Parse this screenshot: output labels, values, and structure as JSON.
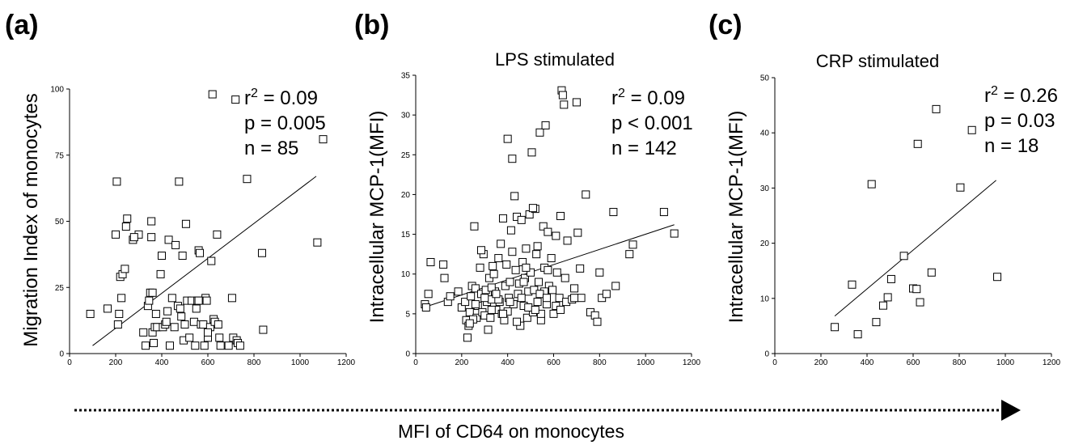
{
  "panels": {
    "a": {
      "letter": "(a)",
      "title": "",
      "ylabel": "Migration Index of monocytes",
      "stats": {
        "r2_prefix": "r",
        "r2_sup": "2",
        "r2_value": " = 0.09",
        "p": "p = 0.005",
        "n": "n = 85"
      }
    },
    "b": {
      "letter": "(b)",
      "title": "LPS stimulated",
      "ylabel": "Intracellular MCP-1(MFI)",
      "stats": {
        "r2_prefix": "r",
        "r2_sup": "2",
        "r2_value": " = 0.09",
        "p": "p < 0.001",
        "n": "n = 142"
      }
    },
    "c": {
      "letter": "(c)",
      "title": "CRP stimulated",
      "ylabel": "Intracellular MCP-1(MFI)",
      "stats": {
        "r2_prefix": "r",
        "r2_sup": "2",
        "r2_value": " = 0.26",
        "p": "p = 0.03",
        "n": "n = 18"
      }
    }
  },
  "shared_xlabel": "MFI of CD64 on monocytes",
  "chart_data": [
    {
      "type": "scatter",
      "panel": "a",
      "title": "",
      "xlabel": "",
      "ylabel": "Migration Index of monocytes",
      "xlim": [
        0,
        1200
      ],
      "ylim": [
        0,
        100
      ],
      "xticks": [
        0,
        200,
        400,
        600,
        800,
        1000,
        1200
      ],
      "yticks": [
        0,
        25,
        50,
        75,
        100
      ],
      "points": [
        [
          90,
          15
        ],
        [
          165,
          17
        ],
        [
          200,
          45
        ],
        [
          205,
          65
        ],
        [
          210,
          11
        ],
        [
          215,
          15
        ],
        [
          220,
          29
        ],
        [
          225,
          21
        ],
        [
          230,
          30
        ],
        [
          240,
          32
        ],
        [
          245,
          48
        ],
        [
          250,
          51
        ],
        [
          275,
          43
        ],
        [
          300,
          45
        ],
        [
          320,
          8
        ],
        [
          330,
          3
        ],
        [
          340,
          18
        ],
        [
          345,
          20
        ],
        [
          350,
          23
        ],
        [
          355,
          44
        ],
        [
          355,
          50
        ],
        [
          360,
          23
        ],
        [
          360,
          8
        ],
        [
          365,
          4
        ],
        [
          370,
          10
        ],
        [
          375,
          15
        ],
        [
          380,
          10
        ],
        [
          395,
          30
        ],
        [
          400,
          37
        ],
        [
          405,
          10
        ],
        [
          415,
          11
        ],
        [
          420,
          12
        ],
        [
          425,
          16
        ],
        [
          430,
          43
        ],
        [
          435,
          3
        ],
        [
          445,
          21
        ],
        [
          455,
          10
        ],
        [
          460,
          41
        ],
        [
          470,
          18
        ],
        [
          475,
          65
        ],
        [
          480,
          17
        ],
        [
          485,
          14
        ],
        [
          490,
          37
        ],
        [
          495,
          5
        ],
        [
          500,
          11
        ],
        [
          505,
          49
        ],
        [
          510,
          20
        ],
        [
          520,
          6
        ],
        [
          530,
          20
        ],
        [
          540,
          12
        ],
        [
          545,
          3
        ],
        [
          550,
          17
        ],
        [
          555,
          20
        ],
        [
          560,
          39
        ],
        [
          565,
          38
        ],
        [
          570,
          11
        ],
        [
          580,
          11
        ],
        [
          585,
          3
        ],
        [
          590,
          21
        ],
        [
          595,
          20
        ],
        [
          600,
          6
        ],
        [
          610,
          10
        ],
        [
          615,
          35
        ],
        [
          620,
          98
        ],
        [
          625,
          13
        ],
        [
          630,
          12
        ],
        [
          640,
          45
        ],
        [
          645,
          11
        ],
        [
          650,
          6
        ],
        [
          655,
          3
        ],
        [
          690,
          3
        ],
        [
          705,
          21
        ],
        [
          710,
          6
        ],
        [
          720,
          96
        ],
        [
          725,
          5
        ],
        [
          730,
          4
        ],
        [
          740,
          3
        ],
        [
          770,
          66
        ],
        [
          835,
          38
        ],
        [
          840,
          9
        ],
        [
          1075,
          42
        ],
        [
          1100,
          81
        ],
        [
          280,
          44
        ],
        [
          560,
          20
        ],
        [
          600,
          8
        ]
      ],
      "trendline": [
        [
          100,
          3
        ],
        [
          1070,
          67
        ]
      ],
      "stats": [
        "r2 = 0.09",
        "p = 0.005",
        "n = 85"
      ]
    },
    {
      "type": "scatter",
      "panel": "b",
      "title": "LPS stimulated",
      "xlabel": "",
      "ylabel": "Intracellular MCP-1(MFI)",
      "xlim": [
        0,
        1200
      ],
      "ylim": [
        0,
        35
      ],
      "xticks": [
        0,
        200,
        400,
        600,
        800,
        1000,
        1200
      ],
      "yticks": [
        0,
        5,
        10,
        15,
        20,
        25,
        30,
        35
      ],
      "points": [
        [
          40,
          6.2
        ],
        [
          45,
          5.8
        ],
        [
          55,
          7.5
        ],
        [
          65,
          11.5
        ],
        [
          120,
          11.2
        ],
        [
          125,
          9.5
        ],
        [
          140,
          6.5
        ],
        [
          150,
          7.2
        ],
        [
          185,
          7.8
        ],
        [
          200,
          5.8
        ],
        [
          215,
          6.5
        ],
        [
          220,
          4.2
        ],
        [
          225,
          2.0
        ],
        [
          230,
          3.5
        ],
        [
          235,
          5.2
        ],
        [
          240,
          7.2
        ],
        [
          245,
          8.5
        ],
        [
          255,
          16.0
        ],
        [
          260,
          8.2
        ],
        [
          265,
          4.5
        ],
        [
          270,
          6.0
        ],
        [
          280,
          10.8
        ],
        [
          285,
          7.5
        ],
        [
          290,
          5.2
        ],
        [
          295,
          12.5
        ],
        [
          300,
          4.8
        ],
        [
          305,
          8.0
        ],
        [
          310,
          6.5
        ],
        [
          315,
          3.0
        ],
        [
          320,
          9.5
        ],
        [
          325,
          4.5
        ],
        [
          330,
          6.8
        ],
        [
          335,
          11.0
        ],
        [
          340,
          10.0
        ],
        [
          345,
          7.8
        ],
        [
          350,
          5.5
        ],
        [
          360,
          12.0
        ],
        [
          365,
          6.5
        ],
        [
          370,
          13.8
        ],
        [
          375,
          5.0
        ],
        [
          380,
          17.0
        ],
        [
          385,
          4.2
        ],
        [
          390,
          8.5
        ],
        [
          395,
          11.2
        ],
        [
          400,
          27.0
        ],
        [
          405,
          7.0
        ],
        [
          410,
          9.0
        ],
        [
          415,
          15.5
        ],
        [
          420,
          24.5
        ],
        [
          425,
          6.2
        ],
        [
          430,
          19.8
        ],
        [
          435,
          10.5
        ],
        [
          440,
          17.2
        ],
        [
          445,
          7.5
        ],
        [
          450,
          8.8
        ],
        [
          455,
          3.5
        ],
        [
          460,
          16.8
        ],
        [
          465,
          11.5
        ],
        [
          470,
          6.0
        ],
        [
          475,
          9.5
        ],
        [
          480,
          13.2
        ],
        [
          485,
          4.5
        ],
        [
          490,
          7.8
        ],
        [
          495,
          17.5
        ],
        [
          500,
          10.2
        ],
        [
          505,
          25.3
        ],
        [
          510,
          5.2
        ],
        [
          515,
          8.0
        ],
        [
          520,
          18.2
        ],
        [
          525,
          12.5
        ],
        [
          530,
          6.5
        ],
        [
          535,
          9.0
        ],
        [
          540,
          27.8
        ],
        [
          545,
          4.2
        ],
        [
          550,
          7.5
        ],
        [
          555,
          16.0
        ],
        [
          560,
          10.8
        ],
        [
          565,
          28.7
        ],
        [
          570,
          6.2
        ],
        [
          575,
          15.3
        ],
        [
          580,
          8.5
        ],
        [
          590,
          12.0
        ],
        [
          600,
          5.0
        ],
        [
          610,
          14.8
        ],
        [
          615,
          10.2
        ],
        [
          625,
          7.0
        ],
        [
          630,
          17.3
        ],
        [
          635,
          33.1
        ],
        [
          640,
          32.5
        ],
        [
          645,
          31.3
        ],
        [
          650,
          9.5
        ],
        [
          655,
          6.5
        ],
        [
          660,
          14.2
        ],
        [
          680,
          6.8
        ],
        [
          690,
          8.2
        ],
        [
          700,
          31.6
        ],
        [
          705,
          15.2
        ],
        [
          715,
          10.7
        ],
        [
          720,
          7.0
        ],
        [
          740,
          20.0
        ],
        [
          760,
          5.2
        ],
        [
          780,
          4.8
        ],
        [
          790,
          4.0
        ],
        [
          800,
          10.2
        ],
        [
          810,
          7.0
        ],
        [
          830,
          7.5
        ],
        [
          860,
          17.8
        ],
        [
          870,
          8.5
        ],
        [
          930,
          12.5
        ],
        [
          945,
          13.7
        ],
        [
          1080,
          17.8
        ],
        [
          1125,
          15.1
        ],
        [
          285,
          13.0
        ],
        [
          330,
          8.3
        ],
        [
          360,
          6.8
        ],
        [
          400,
          5.3
        ],
        [
          420,
          12.8
        ],
        [
          440,
          4.0
        ],
        [
          470,
          9.0
        ],
        [
          490,
          5.8
        ],
        [
          510,
          18.3
        ],
        [
          530,
          13.5
        ],
        [
          545,
          5.0
        ],
        [
          560,
          7.8
        ],
        [
          575,
          10.5
        ],
        [
          595,
          8.0
        ],
        [
          610,
          6.0
        ],
        [
          330,
          5.5
        ],
        [
          260,
          6.2
        ],
        [
          250,
          4.3
        ],
        [
          235,
          3.8
        ],
        [
          300,
          7.0
        ],
        [
          350,
          7.5
        ],
        [
          380,
          5.0
        ],
        [
          410,
          6.5
        ],
        [
          460,
          7.0
        ],
        [
          480,
          10.8
        ],
        [
          520,
          5.5
        ],
        [
          540,
          7.5
        ],
        [
          570,
          7.0
        ],
        [
          630,
          5.5
        ],
        [
          690,
          7.0
        ]
      ],
      "trendline": [
        [
          35,
          5.8
        ],
        [
          1125,
          16.2
        ]
      ],
      "stats": [
        "r2 = 0.09",
        "p < 0.001",
        "n = 142"
      ]
    },
    {
      "type": "scatter",
      "panel": "c",
      "title": "CRP stimulated",
      "xlabel": "",
      "ylabel": "Intracellular MCP-1(MFI)",
      "xlim": [
        0,
        1200
      ],
      "ylim": [
        0,
        50
      ],
      "xticks": [
        0,
        200,
        400,
        600,
        800,
        1000,
        1200
      ],
      "yticks": [
        0,
        10,
        20,
        30,
        40,
        50
      ],
      "points": [
        [
          260,
          4.8
        ],
        [
          335,
          12.5
        ],
        [
          360,
          3.5
        ],
        [
          420,
          30.7
        ],
        [
          440,
          5.7
        ],
        [
          470,
          8.7
        ],
        [
          490,
          10.2
        ],
        [
          505,
          13.5
        ],
        [
          560,
          17.7
        ],
        [
          600,
          11.8
        ],
        [
          615,
          11.7
        ],
        [
          620,
          38.0
        ],
        [
          630,
          9.3
        ],
        [
          680,
          14.7
        ],
        [
          700,
          44.3
        ],
        [
          805,
          30.1
        ],
        [
          855,
          40.5
        ],
        [
          965,
          13.9
        ]
      ],
      "trendline": [
        [
          260,
          6.8
        ],
        [
          960,
          31.4
        ]
      ],
      "stats": [
        "r2 = 0.26",
        "p = 0.03",
        "n = 18"
      ]
    }
  ]
}
